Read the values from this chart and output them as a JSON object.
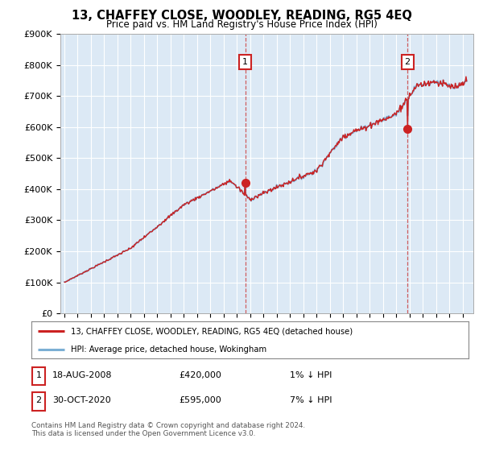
{
  "title": "13, CHAFFEY CLOSE, WOODLEY, READING, RG5 4EQ",
  "subtitle": "Price paid vs. HM Land Registry's House Price Index (HPI)",
  "ylim": [
    0,
    900000
  ],
  "yticks": [
    0,
    100000,
    200000,
    300000,
    400000,
    500000,
    600000,
    700000,
    800000,
    900000
  ],
  "ytick_labels": [
    "£0",
    "£100K",
    "£200K",
    "£300K",
    "£400K",
    "£500K",
    "£600K",
    "£700K",
    "£800K",
    "£900K"
  ],
  "bg_color": "#ffffff",
  "plot_bg_color": "#dce9f5",
  "grid_color": "#ffffff",
  "hpi_color": "#7bafd4",
  "price_color": "#cc2222",
  "sale1_year": 2008.625,
  "sale1_price": 420000,
  "sale2_year": 2020.833,
  "sale2_price": 595000,
  "legend_line1": "13, CHAFFEY CLOSE, WOODLEY, READING, RG5 4EQ (detached house)",
  "legend_line2": "HPI: Average price, detached house, Wokingham",
  "table_row1_date": "18-AUG-2008",
  "table_row1_price": "£420,000",
  "table_row1_hpi": "1% ↓ HPI",
  "table_row2_date": "30-OCT-2020",
  "table_row2_price": "£595,000",
  "table_row2_hpi": "7% ↓ HPI",
  "footer1": "Contains HM Land Registry data © Crown copyright and database right 2024.",
  "footer2": "This data is licensed under the Open Government Licence v3.0."
}
